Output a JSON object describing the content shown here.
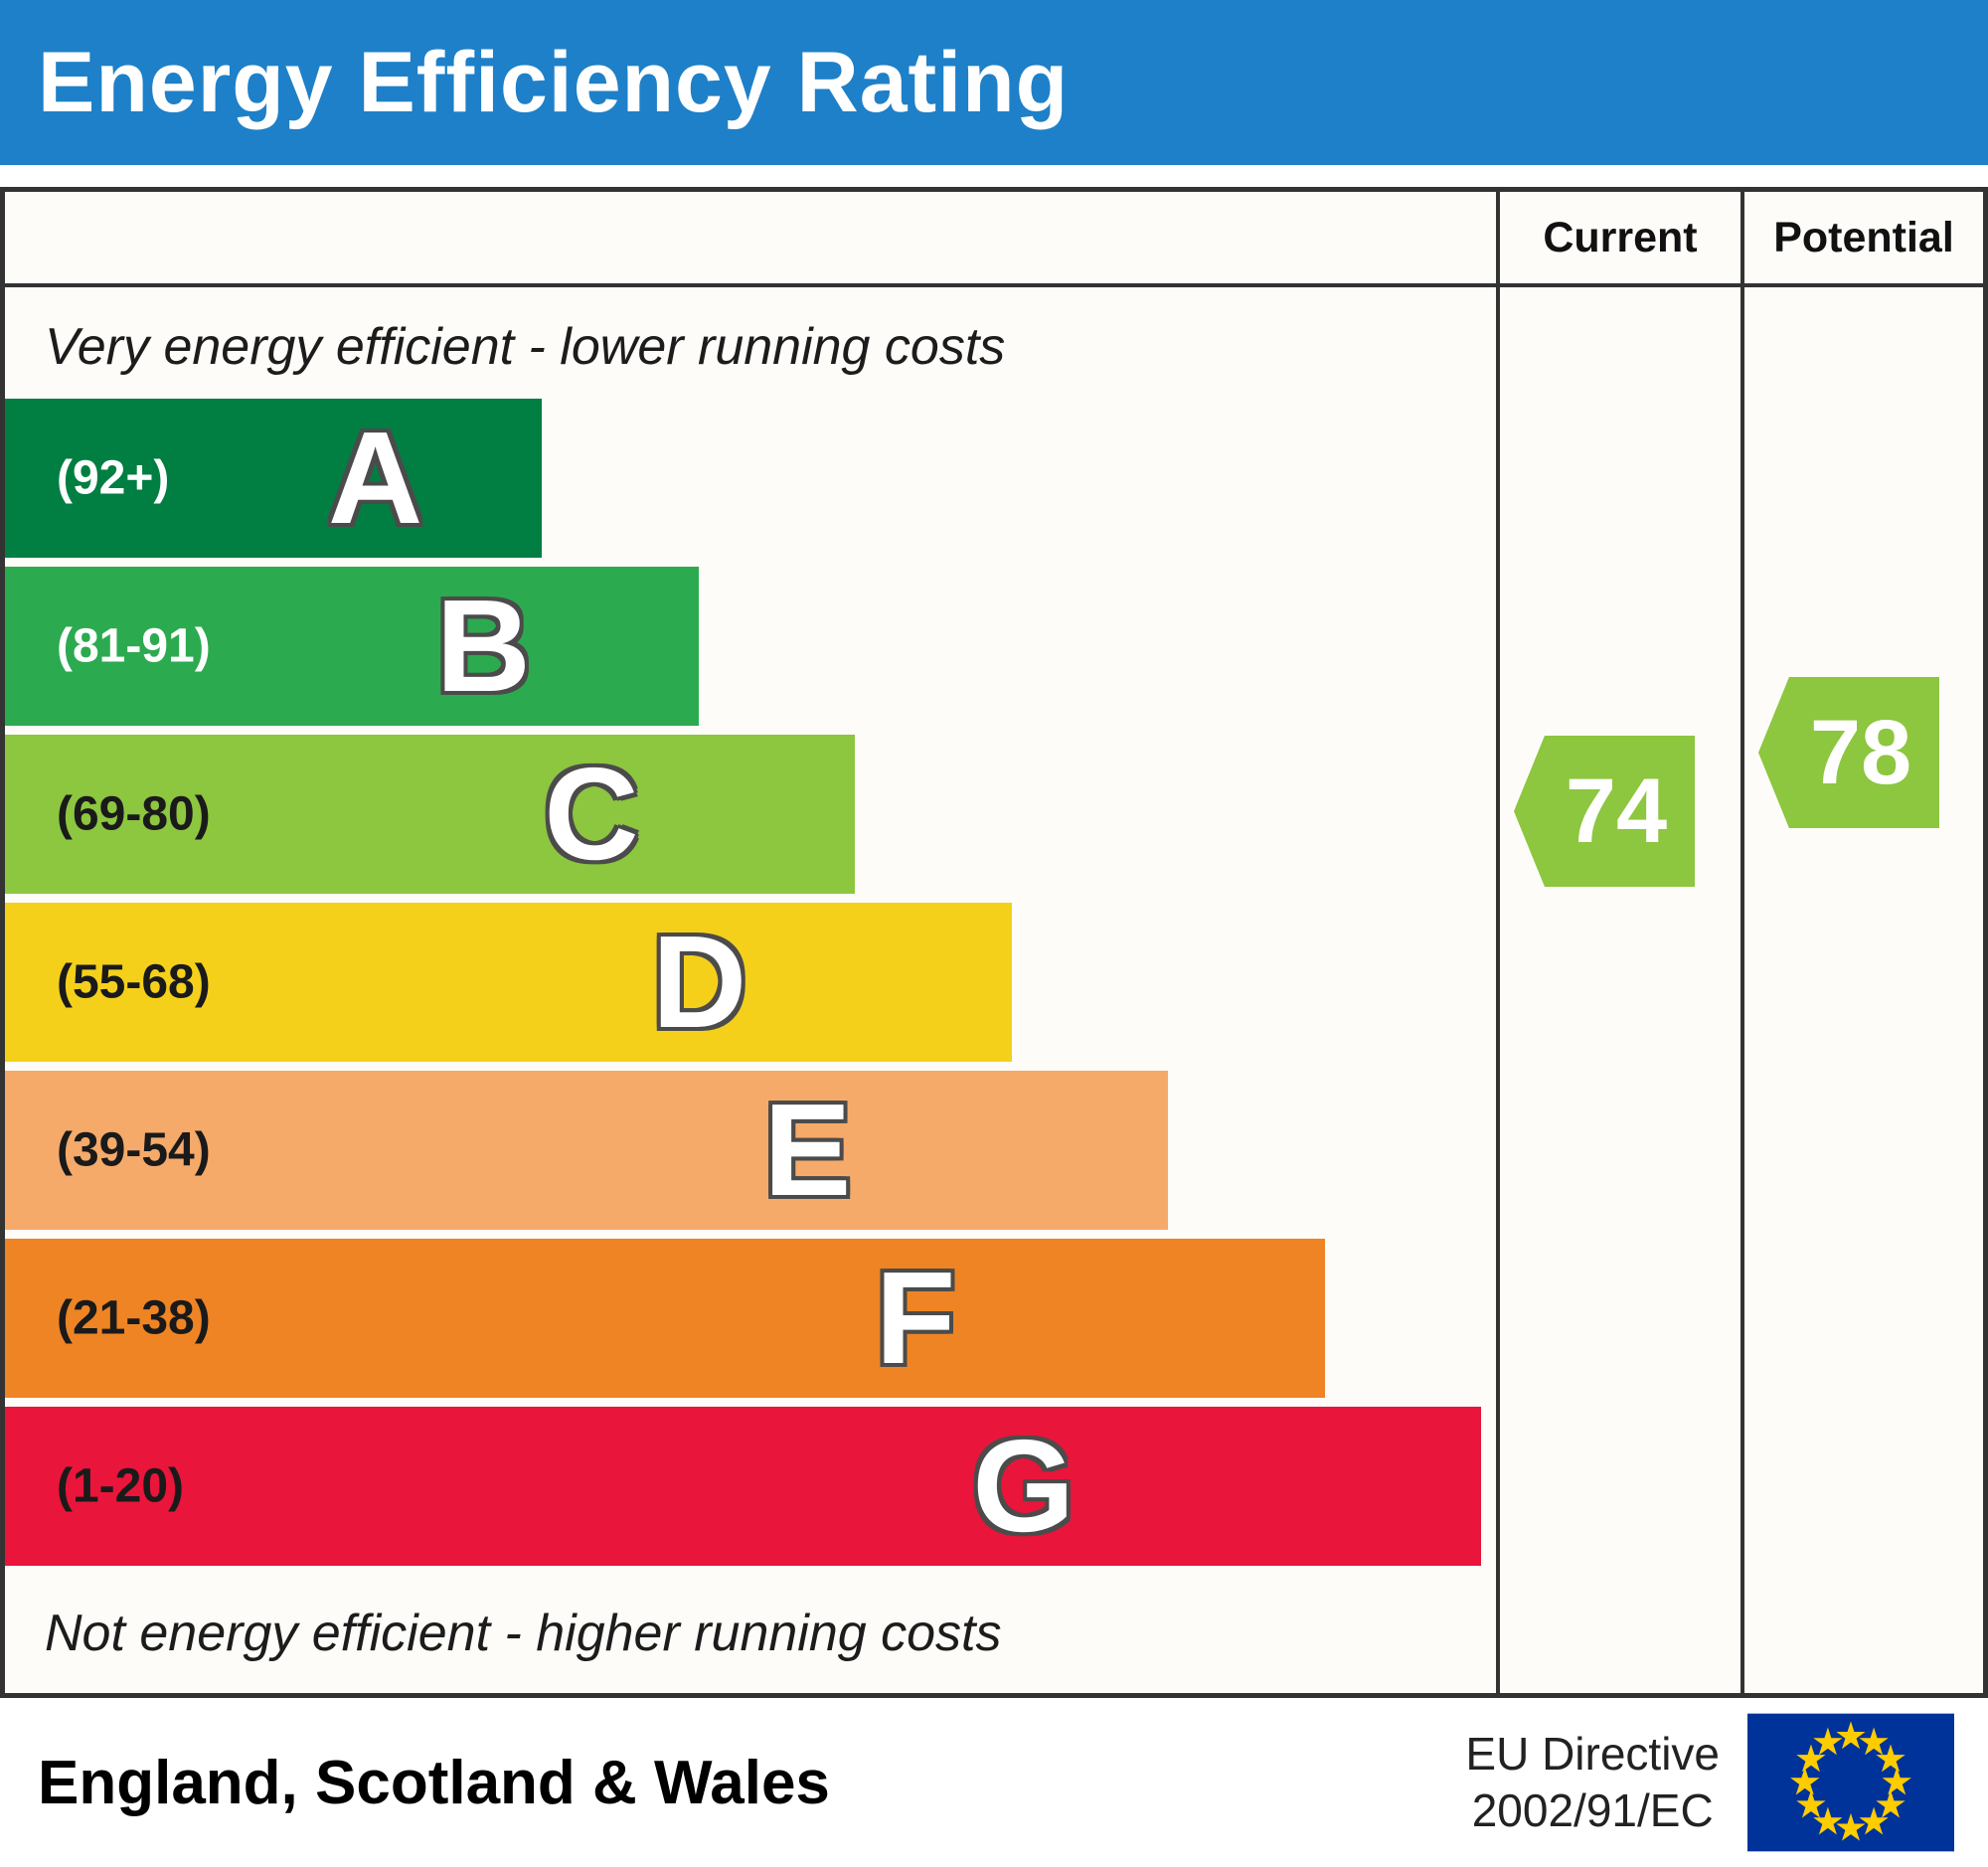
{
  "title": "Energy Efficiency Rating",
  "header": {
    "current_label": "Current",
    "potential_label": "Potential"
  },
  "notes": {
    "top": "Very energy efficient - lower running costs",
    "bottom": "Not energy efficient - higher running costs"
  },
  "bands": [
    {
      "letter": "A",
      "range": "(92+)",
      "color": "#017e41",
      "range_color": "#ffffff",
      "width_pct": 36
    },
    {
      "letter": "B",
      "range": "(81-91)",
      "color": "#2caa4f",
      "range_color": "#ffffff",
      "width_pct": 46.5
    },
    {
      "letter": "C",
      "range": "(69-80)",
      "color": "#8dc63f",
      "range_color": "#1a1a1a",
      "width_pct": 57
    },
    {
      "letter": "D",
      "range": "(55-68)",
      "color": "#f5d01a",
      "range_color": "#1a1a1a",
      "width_pct": 67.5
    },
    {
      "letter": "E",
      "range": "(39-54)",
      "color": "#f5aa6a",
      "range_color": "#1a1a1a",
      "width_pct": 78
    },
    {
      "letter": "F",
      "range": "(21-38)",
      "color": "#ee8424",
      "range_color": "#1a1a1a",
      "width_pct": 88.5
    },
    {
      "letter": "G",
      "range": "(1-20)",
      "color": "#e9153b",
      "range_color": "#1a1a1a",
      "width_pct": 99
    }
  ],
  "ratings": {
    "current": {
      "value": "74",
      "band": "C",
      "color": "#8dc63f"
    },
    "potential": {
      "value": "78",
      "band": "C",
      "color": "#8dc63f"
    }
  },
  "footer": {
    "region": "England, Scotland & Wales",
    "directive_line1": "EU Directive",
    "directive_line2": "2002/91/EC"
  },
  "colors": {
    "header_bg": "#1e80c8",
    "border": "#333333"
  },
  "chart_data": {
    "type": "bar",
    "title": "Energy Efficiency Rating",
    "categories": [
      "A",
      "B",
      "C",
      "D",
      "E",
      "F",
      "G"
    ],
    "band_ranges": [
      "92+",
      "81-91",
      "69-80",
      "55-68",
      "39-54",
      "21-38",
      "1-20"
    ],
    "band_colors": [
      "#017e41",
      "#2caa4f",
      "#8dc63f",
      "#f5d01a",
      "#f5aa6a",
      "#ee8424",
      "#e9153b"
    ],
    "bar_length_pct": [
      36,
      46.5,
      57,
      67.5,
      78,
      88.5,
      99
    ],
    "series": [
      {
        "name": "Current",
        "values": [
          74
        ],
        "band": "C"
      },
      {
        "name": "Potential",
        "values": [
          78
        ],
        "band": "C"
      }
    ],
    "value_range": [
      1,
      100
    ],
    "annotations": [
      "Very energy efficient - lower running costs",
      "Not energy efficient - higher running costs"
    ],
    "region": "England, Scotland & Wales",
    "directive": "EU Directive 2002/91/EC"
  }
}
